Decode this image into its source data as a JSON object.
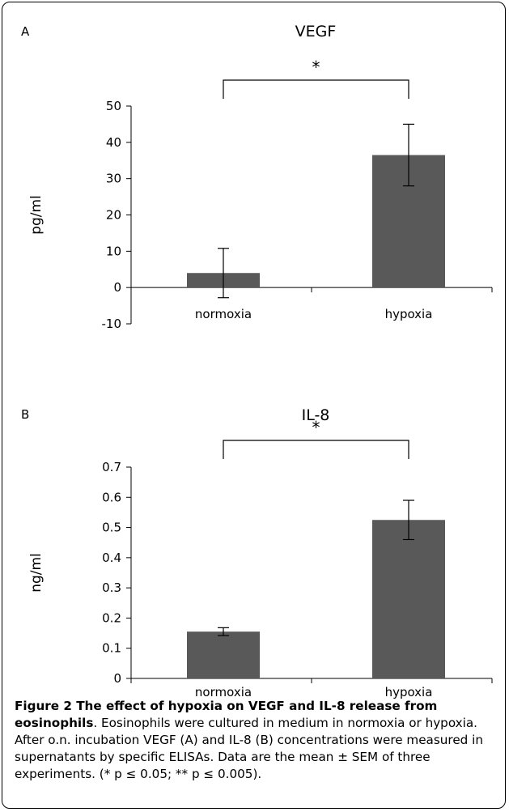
{
  "panels": [
    {
      "letter": "A",
      "chart_data": {
        "type": "bar",
        "title": "VEGF",
        "ylabel": "pg/ml",
        "xlabel": "",
        "categories": [
          "normoxia",
          "hypoxia"
        ],
        "values": [
          4,
          36.5
        ],
        "errors": [
          6.8,
          8.5
        ],
        "ylim": [
          -10,
          50
        ],
        "yticks": [
          -10,
          0,
          10,
          20,
          30,
          40,
          50
        ],
        "ytick_labels": [
          "-10",
          "0",
          "10",
          "20",
          "30",
          "40",
          "50"
        ],
        "significance": "*",
        "bar_color": "#595959",
        "grid": false
      }
    },
    {
      "letter": "B",
      "chart_data": {
        "type": "bar",
        "title": "IL-8",
        "ylabel": "ng/ml",
        "xlabel": "",
        "categories": [
          "normoxia",
          "hypoxia"
        ],
        "values": [
          0.155,
          0.525
        ],
        "errors": [
          0.013,
          0.065
        ],
        "ylim": [
          0,
          0.7
        ],
        "yticks": [
          0,
          0.1,
          0.2,
          0.3,
          0.4,
          0.5,
          0.6,
          0.7
        ],
        "ytick_labels": [
          "0",
          "0.1",
          "0.2",
          "0.3",
          "0.4",
          "0.5",
          "0.6",
          "0.7"
        ],
        "significance": "*",
        "bar_color": "#595959",
        "grid": false
      }
    }
  ],
  "caption": {
    "bold_text": "Figure 2 The effect of hypoxia on VEGF and IL-8 release from eosinophils",
    "body_text": ". Eosinophils were cultured in medium in normoxia or hypoxia. After o.n. incubation VEGF (A) and IL-8 (B) concentrations were measured in supernatants by specific ELISAs. Data are the mean ± SEM of three experiments. (* p ≤ 0.05; ** p ≤ 0.005)."
  }
}
